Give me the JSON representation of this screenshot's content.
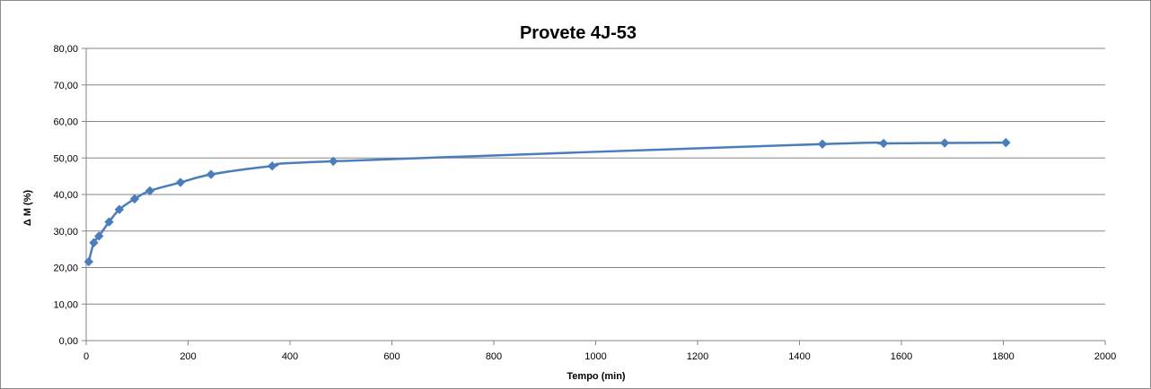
{
  "chart_data": {
    "type": "line",
    "title": "Provete 4J-53",
    "xlabel": "Tempo (min)",
    "ylabel": "Δ M (%)",
    "xlim": [
      0,
      2000
    ],
    "ylim": [
      0,
      80
    ],
    "x_ticks": [
      "0",
      "200",
      "400",
      "600",
      "800",
      "1000",
      "1200",
      "1400",
      "1600",
      "1800",
      "2000"
    ],
    "y_ticks": [
      "0,00",
      "10,00",
      "20,00",
      "30,00",
      "40,00",
      "50,00",
      "60,00",
      "70,00",
      "80,00"
    ],
    "grid": "horizontal",
    "legend": "none",
    "series_color": "#4a7ebb",
    "series": [
      {
        "x": [
          5,
          15,
          25,
          45,
          65,
          95,
          125,
          185,
          245,
          365,
          485,
          1445,
          1565,
          1685,
          1805
        ],
        "y": [
          21.6,
          26.8,
          28.6,
          32.5,
          35.9,
          38.8,
          41.0,
          43.3,
          45.5,
          47.8,
          49.1,
          53.8,
          54.0,
          54.1,
          54.2
        ]
      }
    ]
  }
}
